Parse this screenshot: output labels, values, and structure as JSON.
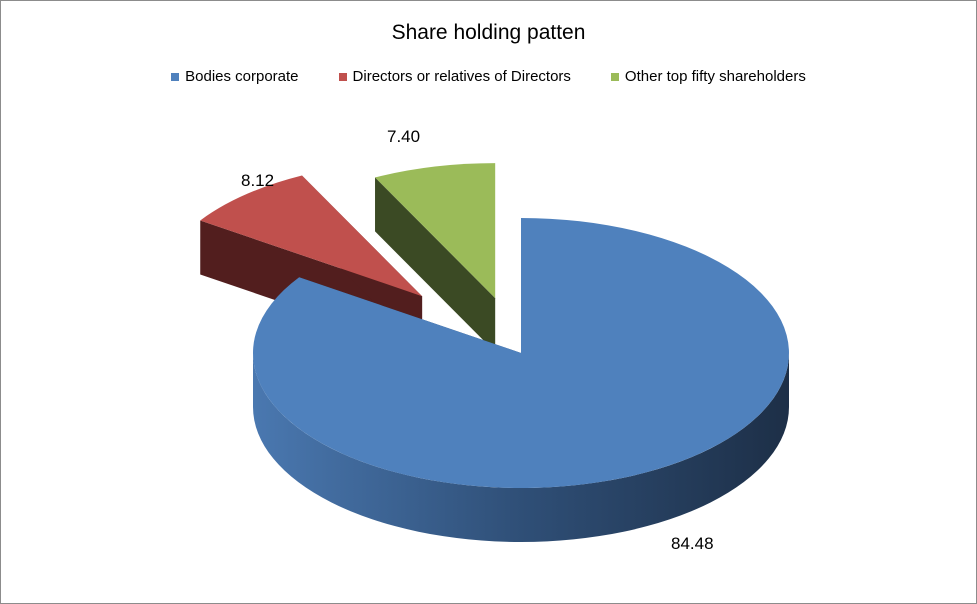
{
  "chart_data": {
    "type": "pie",
    "title": "Share holding patten",
    "legend_position": "top",
    "style": "3d-exploded",
    "series": [
      {
        "name": "Bodies corporate",
        "value": 84.48,
        "label": "84.48",
        "color": "#4f81bd",
        "side_color": "#2d4a6e"
      },
      {
        "name": "Directors or relatives of Directors",
        "value": 8.12,
        "label": "8.12",
        "color": "#c0504d",
        "side_color": "#521e1e"
      },
      {
        "name": "Other top fifty shareholders",
        "value": 7.4,
        "label": "7.40",
        "color": "#9bbb59",
        "side_color": "#3b4a24"
      }
    ]
  }
}
